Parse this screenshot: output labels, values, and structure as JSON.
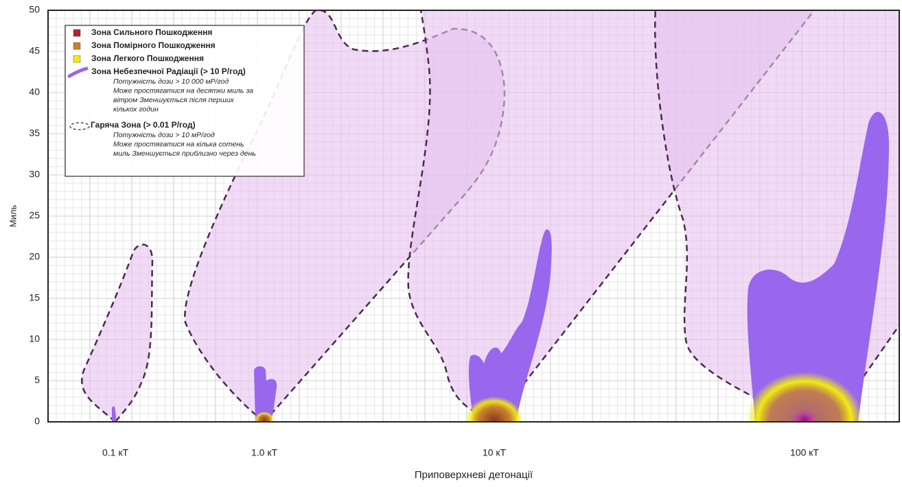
{
  "chart_data": {
    "type": "plume",
    "y_label": "Миль",
    "x_label": "Приповерхневі детонації",
    "categories": [
      "0.1 кТ",
      "1.0 кТ",
      "10 кТ",
      "100 кТ"
    ],
    "ylim": [
      0,
      50
    ],
    "yticks": [
      0,
      5,
      10,
      15,
      20,
      25,
      30,
      35,
      40,
      45,
      50
    ],
    "grid": true,
    "legend": [
      {
        "name": "Зона Сильного Пошкодження",
        "color": "#b3202a"
      },
      {
        "name": "Зона Помірного Пошкодження",
        "color": "#c8822e"
      },
      {
        "name": "Зона Легкого Пошкодження",
        "color": "#f0ec10"
      },
      {
        "name": "Зона Небезпечної Радіації (> 10 Р/год)",
        "color": "#9966ee",
        "description": [
          "Потужність дози > 10 000 мР/год",
          "Може простягатися на десятки миль за",
          "вітром Зменшується після перших",
          "кількох годин"
        ]
      },
      {
        "name": "Гаряча Зона (> 0.01 Р/год)",
        "color": "#6b3a6e",
        "description": [
          "Потужність дози > 10 мР/год",
          "Може простягатися на кілька сотень",
          "миль Зменшується приблизно через день"
        ]
      }
    ]
  }
}
